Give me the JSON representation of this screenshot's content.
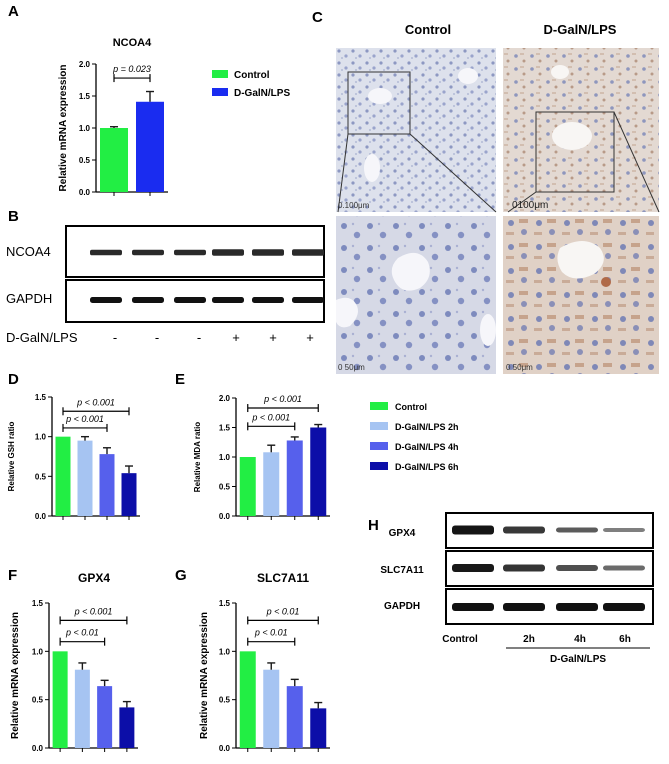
{
  "colors": {
    "green": "#22ee44",
    "blue": "#1a2cf0",
    "light_blue": "#a6c4f2",
    "mid_blue": "#5660ec",
    "dark_blue": "#0c0ea8",
    "error_bar": "#1a1a1a"
  },
  "panels": {
    "A": "A",
    "B": "B",
    "C": "C",
    "D": "D",
    "E": "E",
    "F": "F",
    "G": "G",
    "H": "H"
  },
  "legend_A": [
    "Control",
    "D-GalN/LPS"
  ],
  "legend_DEFG": [
    "Control",
    "D-GalN/LPS 2h",
    "D-GalN/LPS 4h",
    "D-GalN/LPS 6h"
  ],
  "blot_B": {
    "rows": [
      "NCOA4",
      "GAPDH"
    ],
    "treatment_label": "D-GalN/LPS",
    "signs": [
      "-",
      "-",
      "-",
      "+",
      "+",
      "+"
    ]
  },
  "ihc_C": {
    "col_labels": [
      "Control",
      "D-GalN/LPS"
    ],
    "scale_top_left": "0.100μm",
    "scale_top_right": "0100μm",
    "scale_bottom_left": "0  50μm",
    "scale_bottom_right": "0  50μm"
  },
  "blot_H": {
    "rows": [
      "GPX4",
      "SLC7A11",
      "GAPDH"
    ],
    "lanes": [
      "Control",
      "2h",
      "4h",
      "6h"
    ],
    "group_label": "D-GalN/LPS"
  },
  "chart_data": [
    {
      "panel": "A",
      "type": "bar",
      "title": "NCOA4",
      "ylabel": "Relative mRNA expression",
      "ylim": [
        0,
        2.0
      ],
      "yticks": [
        "0.0",
        "0.5",
        "1.0",
        "1.5",
        "2.0"
      ],
      "categories": [
        "Control",
        "D-GalN/LPS"
      ],
      "values": [
        1.0,
        1.41
      ],
      "errors": [
        0.02,
        0.16
      ],
      "annotations": [
        {
          "text": "p = 0.023",
          "from": 0,
          "to": 1,
          "level": 1.78
        }
      ]
    },
    {
      "panel": "D",
      "type": "bar",
      "title": "",
      "ylabel": "Relative GSH ratio",
      "ylim": [
        0,
        1.5
      ],
      "yticks": [
        "0.0",
        "0.5",
        "1.0",
        "1.5"
      ],
      "categories": [
        "Control",
        "D-GalN/LPS 2h",
        "D-GalN/LPS 4h",
        "D-GalN/LPS 6h"
      ],
      "values": [
        1.0,
        0.95,
        0.78,
        0.54
      ],
      "errors": [
        0.0,
        0.05,
        0.08,
        0.09
      ],
      "annotations": [
        {
          "text": "p < 0.001",
          "from": 0,
          "to": 3,
          "level": 1.32
        },
        {
          "text": "p < 0.001",
          "from": 0,
          "to": 2,
          "level": 1.11
        }
      ]
    },
    {
      "panel": "E",
      "type": "bar",
      "title": "",
      "ylabel": "Relative MDA ratio",
      "ylim": [
        0,
        2.0
      ],
      "yticks": [
        "0.0",
        "0.5",
        "1.0",
        "1.5",
        "2.0"
      ],
      "categories": [
        "Control",
        "D-GalN/LPS 2h",
        "D-GalN/LPS 4h",
        "D-GalN/LPS 6h"
      ],
      "values": [
        1.0,
        1.08,
        1.28,
        1.5
      ],
      "errors": [
        0.0,
        0.12,
        0.06,
        0.05
      ],
      "annotations": [
        {
          "text": "p < 0.001",
          "from": 0,
          "to": 3,
          "level": 1.83
        },
        {
          "text": "p < 0.001",
          "from": 0,
          "to": 2,
          "level": 1.52
        }
      ]
    },
    {
      "panel": "F",
      "type": "bar",
      "title": "GPX4",
      "ylabel": "Relative mRNA expression",
      "ylim": [
        0,
        1.5
      ],
      "yticks": [
        "0.0",
        "0.5",
        "1.0",
        "1.5"
      ],
      "categories": [
        "Control",
        "D-GalN/LPS 2h",
        "D-GalN/LPS 4h",
        "D-GalN/LPS 6h"
      ],
      "values": [
        1.0,
        0.81,
        0.64,
        0.42
      ],
      "errors": [
        0.0,
        0.07,
        0.06,
        0.06
      ],
      "annotations": [
        {
          "text": "p < 0.001",
          "from": 0,
          "to": 3,
          "level": 1.32
        },
        {
          "text": "p < 0.01",
          "from": 0,
          "to": 2,
          "level": 1.1
        }
      ]
    },
    {
      "panel": "G",
      "type": "bar",
      "title": "SLC7A11",
      "ylabel": "Relative mRNA expression",
      "ylim": [
        0,
        1.5
      ],
      "yticks": [
        "0.0",
        "0.5",
        "1.0",
        "1.5"
      ],
      "categories": [
        "Control",
        "D-GalN/LPS 2h",
        "D-GalN/LPS 4h",
        "D-GalN/LPS 6h"
      ],
      "values": [
        1.0,
        0.81,
        0.64,
        0.41
      ],
      "errors": [
        0.0,
        0.07,
        0.07,
        0.06
      ],
      "annotations": [
        {
          "text": "p < 0.01",
          "from": 0,
          "to": 3,
          "level": 1.32
        },
        {
          "text": "p < 0.01",
          "from": 0,
          "to": 2,
          "level": 1.1
        }
      ]
    }
  ]
}
